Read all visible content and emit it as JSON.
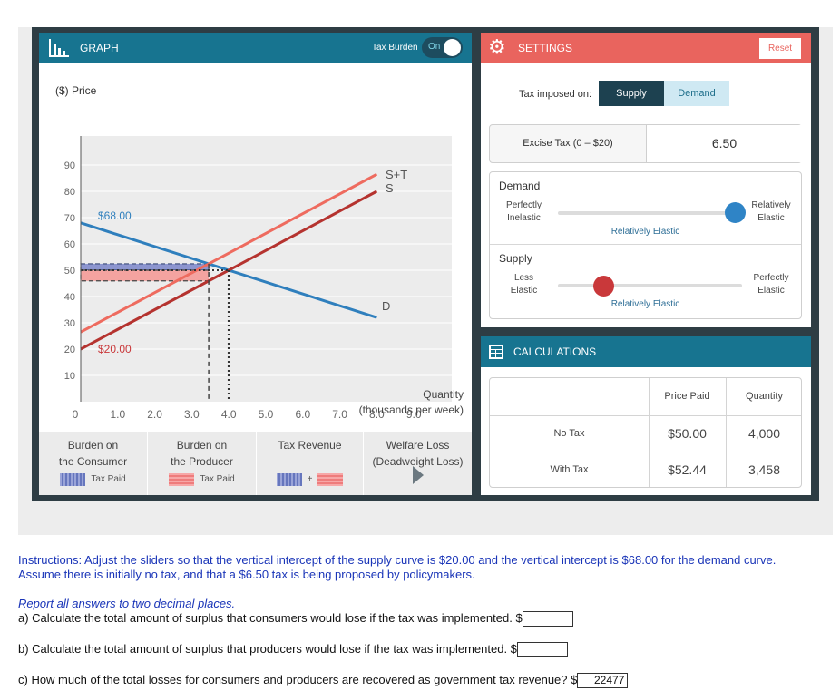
{
  "graph": {
    "title": "GRAPH",
    "tax_burden_label": "Tax Burden",
    "toggle_label": "On",
    "price_axis_label": "($) Price",
    "quantity_axis_label_1": "Quantity",
    "quantity_axis_label_2": "(thousands per week)",
    "y_ticks": [
      "90",
      "80",
      "70",
      "60",
      "50",
      "40",
      "30",
      "20",
      "10"
    ],
    "x_ticks": [
      "0",
      "1.0",
      "2.0",
      "3.0",
      "4.0",
      "5.0",
      "6.0",
      "7.0",
      "8.0",
      "9.0"
    ],
    "demand_intercept_label": "$68.00",
    "supply_intercept_label": "$20.00",
    "curve_label_st": "S+T",
    "curve_label_s": "S",
    "curve_label_d": "D"
  },
  "legend": {
    "consumer_1": "Burden on",
    "consumer_2": "the Consumer",
    "consumer_swatch": "Tax Paid",
    "producer_1": "Burden on",
    "producer_2": "the Producer",
    "producer_swatch": "Tax Paid",
    "revenue": "Tax Revenue",
    "revenue_plus": "+",
    "welfare_1": "Welfare Loss",
    "welfare_2": "(Deadweight Loss)"
  },
  "settings": {
    "title": "SETTINGS",
    "reset_label": "Reset",
    "tax_imposed_label": "Tax imposed on:",
    "supply_btn": "Supply",
    "demand_btn": "Demand",
    "excise_label": "Excise Tax (0 – $20)",
    "excise_value": "6.50",
    "demand_slider": {
      "heading": "Demand",
      "left_1": "Perfectly",
      "left_2": "Inelastic",
      "right_1": "Relatively",
      "right_2": "Elastic",
      "value_label": "Relatively Elastic"
    },
    "supply_slider": {
      "heading": "Supply",
      "left_1": "Less",
      "left_2": "Elastic",
      "right_1": "Perfectly",
      "right_2": "Elastic",
      "value_label": "Relatively Elastic"
    }
  },
  "calculations": {
    "title": "CALCULATIONS",
    "col_price": "Price Paid",
    "col_qty": "Quantity",
    "row_no_tax": "No Tax",
    "row_with_tax": "With Tax",
    "no_tax_price": "$50.00",
    "no_tax_qty": "4,000",
    "with_tax_price": "$52.44",
    "with_tax_qty": "3,458"
  },
  "instructions": {
    "text": "Instructions: Adjust the sliders so that the vertical intercept of the supply curve is $20.00 and the vertical intercept is $68.00 for the demand curve.  Assume there is initially no tax, and that a $6.50 tax is being proposed by policymakers.",
    "report": "Report all answers to two decimal places.",
    "qa": "a) Calculate the total amount of surplus that consumers would lose if the tax was implemented.  $",
    "qb": "b) Calculate the total amount of surplus that producers would lose if the tax was implemented.  $",
    "qc": "c) How much of the total losses for consumers and producers are recovered as government tax revenue?  $",
    "answer_a": "",
    "answer_b": "",
    "answer_c": "22477"
  },
  "colors": {
    "header_teal": "#177490",
    "settings_coral": "#e9645e",
    "demand_blue": "#2f7fbd",
    "supply_dark_red": "#b5332f",
    "supply_tax_red": "#ee6b5f"
  },
  "chart_data": {
    "type": "line",
    "xlabel": "Quantity (thousands per week)",
    "ylabel": "($) Price",
    "xlim": [
      0,
      9
    ],
    "ylim": [
      0,
      90
    ],
    "series": [
      {
        "name": "D",
        "x": [
          0,
          8
        ],
        "y": [
          68,
          32
        ]
      },
      {
        "name": "S",
        "x": [
          0,
          8
        ],
        "y": [
          20,
          80
        ]
      },
      {
        "name": "S+T",
        "x": [
          0,
          8
        ],
        "y": [
          26.5,
          86.5
        ]
      }
    ],
    "equilibrium_no_tax": {
      "price": 50.0,
      "quantity": 4.0
    },
    "equilibrium_with_tax": {
      "price": 52.44,
      "quantity": 3.458
    }
  }
}
